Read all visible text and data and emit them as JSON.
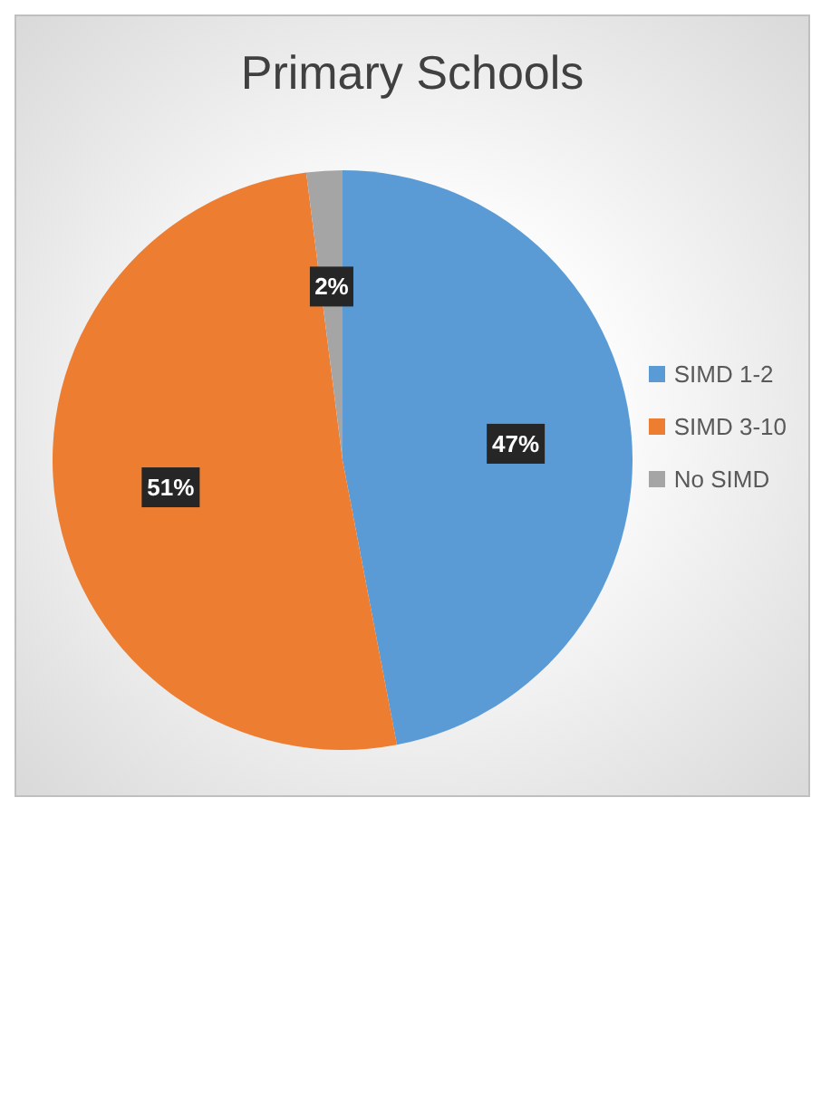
{
  "chart_data": {
    "type": "pie",
    "title": "Primary Schools",
    "categories": [
      "SIMD 1-2",
      "SIMD 3-10",
      "No SIMD"
    ],
    "values": [
      47,
      51,
      2
    ],
    "colors": [
      "#5b9bd5",
      "#ed7d31",
      "#a5a5a5"
    ],
    "value_labels": [
      "47%",
      "51%",
      "2%"
    ],
    "legend": "right"
  }
}
